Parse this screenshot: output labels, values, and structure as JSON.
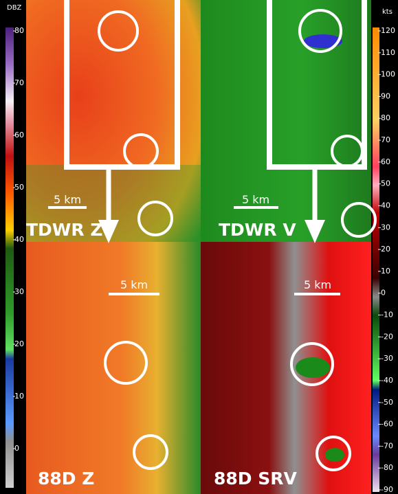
{
  "left_colorbar": {
    "unit": "DBZ",
    "ticks": [
      80,
      70,
      60,
      50,
      40,
      30,
      20,
      10,
      0
    ]
  },
  "right_colorbar": {
    "unit": "kts",
    "ticks": [
      120,
      110,
      100,
      90,
      80,
      70,
      60,
      50,
      40,
      30,
      20,
      10,
      0,
      -10,
      -20,
      -30,
      -40,
      -50,
      -60,
      -70,
      -80,
      -90
    ]
  },
  "panels": [
    {
      "label": "TDWR Z",
      "scale": "5 km"
    },
    {
      "label": "TDWR V",
      "scale": "5 km"
    },
    {
      "label": "88D Z",
      "scale": "5 km"
    },
    {
      "label": "88D SRV",
      "scale": "5 km"
    }
  ]
}
